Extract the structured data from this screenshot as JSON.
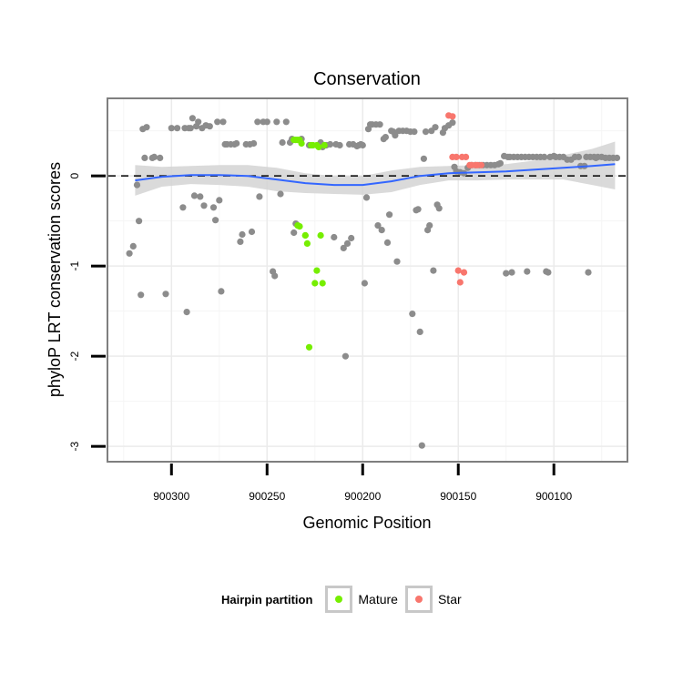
{
  "chart_data": {
    "type": "scatter",
    "title": "Conservation",
    "xlabel": "Genomic Position",
    "ylabel": "phyloP LRT conservation scores",
    "xlim": [
      900333,
      900062
    ],
    "ylim": [
      -3.16,
      0.85
    ],
    "x_reversed": true,
    "xticks": [
      900300,
      900250,
      900200,
      900150,
      900100
    ],
    "yticks": [
      0,
      -1,
      -2,
      -3
    ],
    "reference_line_y": 0,
    "legend": {
      "title": "Hairpin partition",
      "placement": "bottom",
      "entries": [
        {
          "label": "Mature",
          "color": "#76ee00"
        },
        {
          "label": "Star",
          "color": "#f8766d"
        }
      ]
    },
    "colors": {
      "other": "#8c8c8c",
      "Mature": "#76ee00",
      "Star": "#f8766d",
      "smooth": "#3366ff",
      "band": "#d3d3d3"
    },
    "series": [
      {
        "name": "Other",
        "points": [
          [
            900322,
            -0.86
          ],
          [
            900320,
            -0.78
          ],
          [
            900318,
            -0.1
          ],
          [
            900317,
            -0.5
          ],
          [
            900316,
            -1.32
          ],
          [
            900315,
            0.52
          ],
          [
            900314,
            0.2
          ],
          [
            900313,
            0.54
          ],
          [
            900310,
            0.2
          ],
          [
            900309,
            0.21
          ],
          [
            900306,
            0.2
          ],
          [
            900303,
            -1.31
          ],
          [
            900300,
            0.53
          ],
          [
            900297,
            0.53
          ],
          [
            900294,
            -0.35
          ],
          [
            900293,
            0.53
          ],
          [
            900292,
            -1.51
          ],
          [
            900291,
            0.53
          ],
          [
            900290,
            0.53
          ],
          [
            900289,
            0.64
          ],
          [
            900288,
            -0.22
          ],
          [
            900287,
            0.55
          ],
          [
            900286,
            0.6
          ],
          [
            900285,
            -0.23
          ],
          [
            900284,
            0.53
          ],
          [
            900283,
            -0.33
          ],
          [
            900282,
            0.56
          ],
          [
            900280,
            0.55
          ],
          [
            900278,
            -0.35
          ],
          [
            900277,
            -0.49
          ],
          [
            900276,
            0.6
          ],
          [
            900275,
            -0.27
          ],
          [
            900274,
            -1.28
          ],
          [
            900273,
            0.6
          ],
          [
            900272,
            0.35
          ],
          [
            900271,
            0.35
          ],
          [
            900269,
            0.35
          ],
          [
            900267,
            0.35
          ],
          [
            900266,
            0.36
          ],
          [
            900264,
            -0.73
          ],
          [
            900263,
            -0.65
          ],
          [
            900261,
            0.35
          ],
          [
            900259,
            0.35
          ],
          [
            900258,
            -0.62
          ],
          [
            900257,
            0.36
          ],
          [
            900255,
            0.6
          ],
          [
            900254,
            -0.23
          ],
          [
            900252,
            0.6
          ],
          [
            900250,
            0.6
          ],
          [
            900247,
            -1.06
          ],
          [
            900246,
            -1.11
          ],
          [
            900245,
            0.6
          ],
          [
            900243,
            -0.2
          ],
          [
            900242,
            0.37
          ],
          [
            900240,
            0.6
          ],
          [
            900238,
            0.37
          ],
          [
            900237,
            0.41
          ],
          [
            900236,
            -0.63
          ],
          [
            900235,
            -0.53
          ],
          [
            900234,
            -0.55
          ],
          [
            900232,
            0.41
          ],
          [
            900228,
            0.34
          ],
          [
            900222,
            0.37
          ],
          [
            900221,
            0.32
          ],
          [
            900219,
            0.34
          ],
          [
            900217,
            0.35
          ],
          [
            900215,
            -0.68
          ],
          [
            900214,
            0.35
          ],
          [
            900212,
            0.34
          ],
          [
            900210,
            -0.8
          ],
          [
            900209,
            -2.0
          ],
          [
            900208,
            -0.75
          ],
          [
            900207,
            0.35
          ],
          [
            900206,
            -0.69
          ],
          [
            900205,
            0.35
          ],
          [
            900203,
            0.33
          ],
          [
            900202,
            0.34
          ],
          [
            900201,
            0.35
          ],
          [
            900200,
            0.34
          ],
          [
            900199,
            -1.19
          ],
          [
            900198,
            -0.24
          ],
          [
            900197,
            0.52
          ],
          [
            900196,
            0.57
          ],
          [
            900195,
            0.57
          ],
          [
            900193,
            0.57
          ],
          [
            900192,
            -0.55
          ],
          [
            900191,
            0.57
          ],
          [
            900190,
            -0.6
          ],
          [
            900189,
            0.41
          ],
          [
            900188,
            0.43
          ],
          [
            900187,
            -0.74
          ],
          [
            900186,
            -0.43
          ],
          [
            900185,
            0.5
          ],
          [
            900184,
            0.49
          ],
          [
            900183,
            0.45
          ],
          [
            900182,
            -0.95
          ],
          [
            900181,
            0.5
          ],
          [
            900179,
            0.5
          ],
          [
            900177,
            0.5
          ],
          [
            900175,
            0.49
          ],
          [
            900174,
            -1.53
          ],
          [
            900173,
            0.49
          ],
          [
            900172,
            -0.38
          ],
          [
            900171,
            -0.37
          ],
          [
            900170,
            -1.73
          ],
          [
            900169,
            -2.99
          ],
          [
            900168,
            0.19
          ],
          [
            900167,
            0.49
          ],
          [
            900166,
            -0.6
          ],
          [
            900165,
            -0.55
          ],
          [
            900164,
            0.5
          ],
          [
            900163,
            -1.05
          ],
          [
            900162,
            0.54
          ],
          [
            900161,
            -0.32
          ],
          [
            900160,
            -0.36
          ],
          [
            900158,
            0.48
          ],
          [
            900157,
            0.53
          ],
          [
            900155,
            0.56
          ],
          [
            900153,
            0.59
          ],
          [
            900152,
            0.1
          ],
          [
            900151,
            0.05
          ],
          [
            900149,
            0.04
          ],
          [
            900147,
            0.03
          ],
          [
            900145,
            0.09
          ],
          [
            900143,
            0.12
          ],
          [
            900141,
            0.12
          ],
          [
            900139,
            0.12
          ],
          [
            900137,
            0.12
          ],
          [
            900135,
            0.12
          ],
          [
            900133,
            0.12
          ],
          [
            900131,
            0.12
          ],
          [
            900129,
            0.13
          ],
          [
            900128,
            0.14
          ],
          [
            900126,
            0.22
          ],
          [
            900125,
            -1.08
          ],
          [
            900124,
            0.21
          ],
          [
            900123,
            0.21
          ],
          [
            900122,
            -1.07
          ],
          [
            900121,
            0.21
          ],
          [
            900119,
            0.21
          ],
          [
            900117,
            0.21
          ],
          [
            900115,
            0.21
          ],
          [
            900114,
            -1.06
          ],
          [
            900113,
            0.21
          ],
          [
            900111,
            0.21
          ],
          [
            900109,
            0.21
          ],
          [
            900107,
            0.21
          ],
          [
            900105,
            0.21
          ],
          [
            900104,
            -1.06
          ],
          [
            900103,
            -1.07
          ],
          [
            900102,
            0.21
          ],
          [
            900100,
            0.22
          ],
          [
            900099,
            0.21
          ],
          [
            900097,
            0.21
          ],
          [
            900095,
            0.21
          ],
          [
            900093,
            0.18
          ],
          [
            900091,
            0.18
          ],
          [
            900089,
            0.21
          ],
          [
            900087,
            0.21
          ],
          [
            900086,
            0.11
          ],
          [
            900084,
            0.11
          ],
          [
            900083,
            0.21
          ],
          [
            900082,
            -1.07
          ],
          [
            900081,
            0.21
          ],
          [
            900079,
            0.21
          ],
          [
            900078,
            0.2
          ],
          [
            900077,
            0.21
          ],
          [
            900075,
            0.21
          ],
          [
            900073,
            0.2
          ],
          [
            900071,
            0.2
          ],
          [
            900069,
            0.2
          ],
          [
            900067,
            0.2
          ]
        ]
      },
      {
        "name": "Mature",
        "points": [
          [
            900236,
            0.4
          ],
          [
            900235,
            0.4
          ],
          [
            900234,
            0.4
          ],
          [
            900233,
            0.4
          ],
          [
            900232,
            0.36
          ],
          [
            900234,
            -0.55
          ],
          [
            900233,
            -0.56
          ],
          [
            900230,
            -0.66
          ],
          [
            900229,
            -0.75
          ],
          [
            900230,
            -0.66
          ],
          [
            900228,
            -1.9
          ],
          [
            900227,
            0.34
          ],
          [
            900226,
            0.34
          ],
          [
            900225,
            -1.19
          ],
          [
            900224,
            0.34
          ],
          [
            900224,
            -1.05
          ],
          [
            900223,
            0.32
          ],
          [
            900222,
            -0.66
          ],
          [
            900221,
            -1.19
          ],
          [
            900220,
            0.34
          ]
        ]
      },
      {
        "name": "Star",
        "points": [
          [
            900155,
            0.67
          ],
          [
            900153,
            0.66
          ],
          [
            900153,
            0.21
          ],
          [
            900151,
            0.21
          ],
          [
            900150,
            -1.05
          ],
          [
            900149,
            -1.18
          ],
          [
            900148,
            0.21
          ],
          [
            900147,
            -1.07
          ],
          [
            900146,
            0.21
          ],
          [
            900144,
            0.12
          ],
          [
            900143,
            0.12
          ],
          [
            900141,
            0.12
          ],
          [
            900140,
            0.12
          ],
          [
            900138,
            0.12
          ]
        ]
      }
    ],
    "smooth": {
      "x": [
        900319,
        900305,
        900290,
        900275,
        900260,
        900245,
        900230,
        900215,
        900200,
        900185,
        900170,
        900155,
        900140,
        900125,
        900110,
        900095,
        900080,
        900068
      ],
      "y": [
        -0.05,
        -0.01,
        0.01,
        0.01,
        0.0,
        -0.04,
        -0.08,
        -0.1,
        -0.1,
        -0.06,
        0.0,
        0.03,
        0.04,
        0.05,
        0.07,
        0.09,
        0.11,
        0.13
      ],
      "lower": [
        -0.22,
        -0.12,
        -0.09,
        -0.1,
        -0.12,
        -0.17,
        -0.19,
        -0.2,
        -0.21,
        -0.18,
        -0.1,
        -0.05,
        -0.05,
        -0.04,
        -0.04,
        -0.04,
        -0.1,
        -0.15
      ],
      "upper": [
        0.12,
        0.1,
        0.11,
        0.12,
        0.12,
        0.09,
        0.03,
        0.0,
        0.0,
        0.06,
        0.1,
        0.11,
        0.12,
        0.13,
        0.17,
        0.23,
        0.3,
        0.38
      ]
    }
  }
}
